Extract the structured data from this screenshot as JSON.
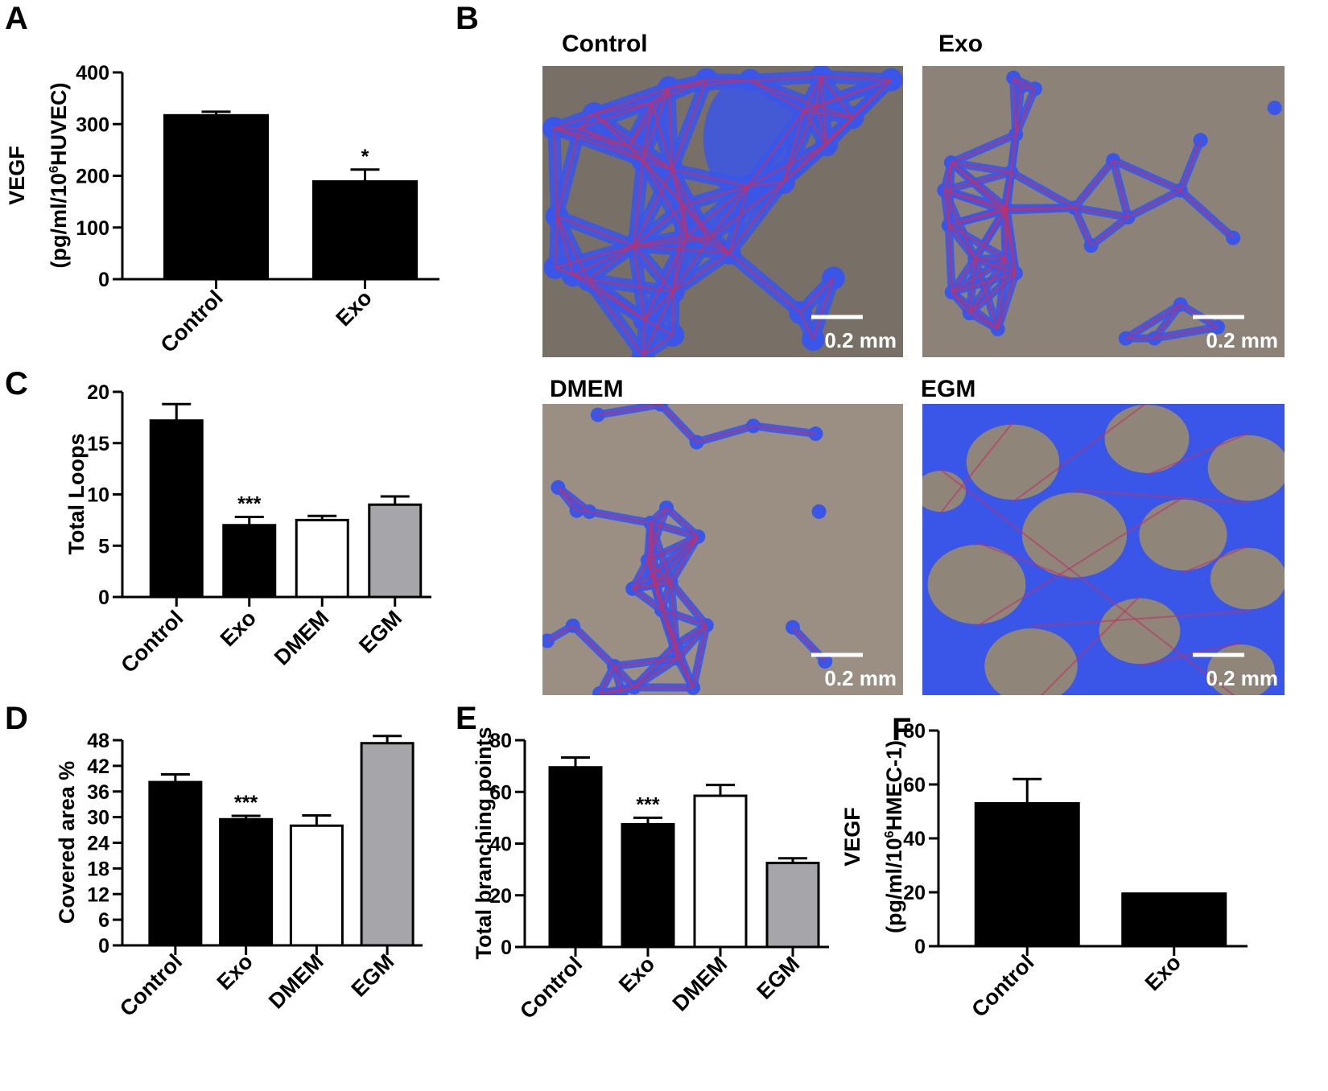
{
  "panel_letters": {
    "A": "A",
    "B": "B",
    "C": "C",
    "D": "D",
    "E": "E",
    "F": "F"
  },
  "chart_data": [
    {
      "panel": "A",
      "type": "bar",
      "categories": [
        "Control",
        "Exo"
      ],
      "values": [
        317,
        189
      ],
      "errors": [
        7,
        23
      ],
      "colors": [
        "#000000",
        "#000000"
      ],
      "significance": [
        "",
        "*"
      ],
      "ylabel": "VEGF",
      "ylabel2_parts": [
        "(pg/ml/10",
        "6",
        "HUVEC)"
      ],
      "ylim": [
        0,
        400
      ],
      "yticks": [
        0,
        100,
        200,
        300,
        400
      ]
    },
    {
      "panel": "C",
      "type": "bar",
      "categories": [
        "Control",
        "Exo",
        "DMEM",
        "EGM"
      ],
      "values": [
        17.2,
        7.0,
        7.5,
        9.0
      ],
      "errors": [
        1.6,
        0.8,
        0.4,
        0.8
      ],
      "colors": [
        "#000000",
        "#000000",
        "#ffffff",
        "#a6a6aa"
      ],
      "significance": [
        "",
        "***",
        "",
        ""
      ],
      "ylabel": "Total Loops",
      "ylim": [
        0,
        20
      ],
      "yticks": [
        0,
        5,
        10,
        15,
        20
      ]
    },
    {
      "panel": "D",
      "type": "bar",
      "categories": [
        "Control",
        "Exo",
        "DMEM",
        "EGM"
      ],
      "values": [
        38.2,
        29.5,
        28.0,
        47.3
      ],
      "errors": [
        1.8,
        0.8,
        2.4,
        1.7
      ],
      "colors": [
        "#000000",
        "#000000",
        "#ffffff",
        "#a6a6aa"
      ],
      "significance": [
        "",
        "***",
        "",
        ""
      ],
      "ylabel": "Covered area %",
      "ylim": [
        0,
        48
      ],
      "yticks": [
        0,
        6,
        12,
        18,
        24,
        30,
        36,
        42,
        48
      ]
    },
    {
      "panel": "E",
      "type": "bar",
      "categories": [
        "Control",
        "Exo",
        "DMEM",
        "EGM"
      ],
      "values": [
        69.5,
        47.5,
        58.5,
        32.5
      ],
      "errors": [
        3.8,
        2.5,
        4.2,
        1.8
      ],
      "colors": [
        "#000000",
        "#000000",
        "#ffffff",
        "#a6a6aa"
      ],
      "significance": [
        "",
        "***",
        "",
        ""
      ],
      "ylabel": "Total branching points",
      "ylim": [
        0,
        80
      ],
      "yticks": [
        0,
        20,
        40,
        60,
        80
      ]
    },
    {
      "panel": "F",
      "type": "bar",
      "categories": [
        "Control",
        "Exo"
      ],
      "values": [
        53,
        19.5
      ],
      "errors": [
        9,
        0
      ],
      "colors": [
        "#000000",
        "#000000"
      ],
      "significance": [
        "",
        ""
      ],
      "ylabel": "VEGF",
      "ylabel2_parts": [
        "(pg/ml/10",
        "6",
        "HMEC-1)"
      ],
      "ylim": [
        0,
        80
      ],
      "yticks": [
        0,
        20,
        40,
        60,
        80
      ]
    }
  ],
  "micrographs": {
    "control": {
      "title": "Control",
      "scale": "0.2 mm"
    },
    "exo": {
      "title": "Exo",
      "scale": "0.2 mm"
    },
    "dmem": {
      "title": "DMEM",
      "scale": "0.2 mm"
    },
    "egm": {
      "title": "EGM",
      "scale": "0.2 mm"
    }
  },
  "colors": {
    "network_fill": "#3a56e8",
    "network_line": "#c0306a",
    "background_control": "#787066",
    "background_exo": "#8c8277",
    "background_dmem": "#9b8f83",
    "background_egm": "#8f8578"
  }
}
